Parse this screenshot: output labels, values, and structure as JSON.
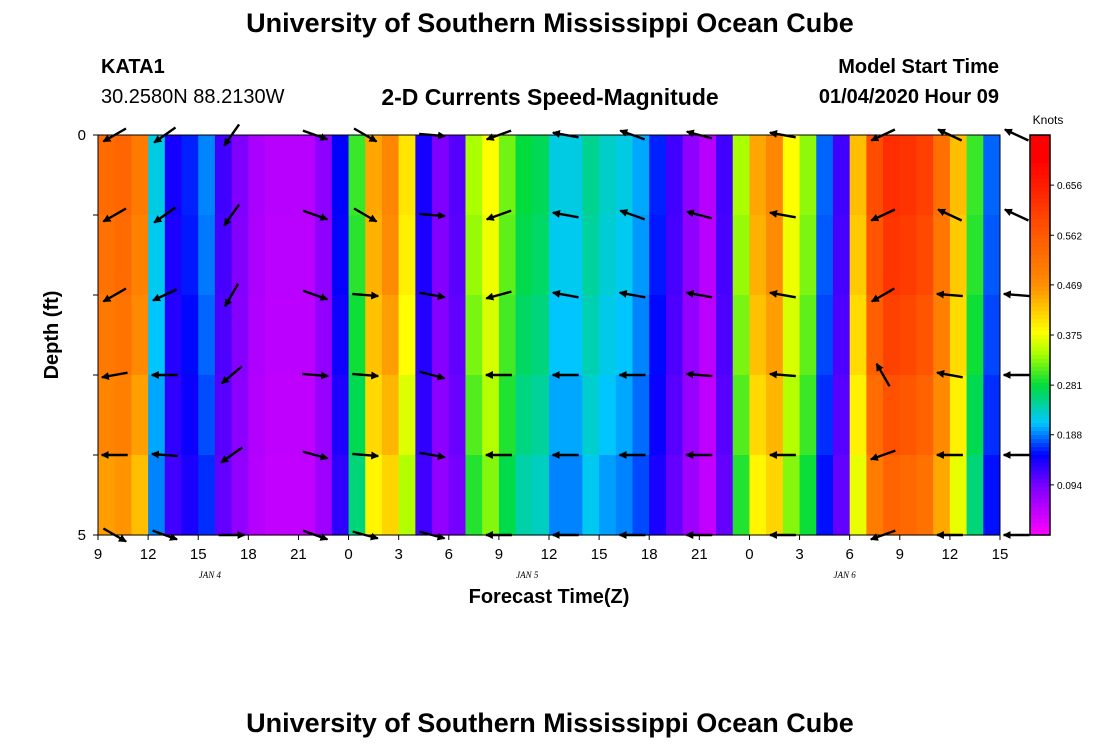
{
  "header": {
    "title": "University of Southern Mississippi Ocean Cube",
    "station_id": "KATA1",
    "station_coords": "30.2580N 88.2130W",
    "chart_title": "2-D Currents Speed-Magnitude",
    "model_start_label": "Model Start Time",
    "model_start_value": "01/04/2020 Hour 09"
  },
  "footer": {
    "title": "University of Southern Mississippi Ocean Cube"
  },
  "chart_data": {
    "type": "heatmap",
    "title": "2-D Currents Speed-Magnitude",
    "xlabel": "Forecast Time(Z)",
    "ylabel": "Depth (ft)",
    "x_tick_labels": [
      "9",
      "12",
      "15",
      "18",
      "21",
      "0",
      "3",
      "6",
      "9",
      "12",
      "15",
      "18",
      "21",
      "0",
      "3",
      "6",
      "9",
      "12",
      "15"
    ],
    "x_start_hour": 9,
    "x_hours_total": 54,
    "date_labels": [
      {
        "text": "JAN 4",
        "hour": 16
      },
      {
        "text": "JAN 5",
        "hour": 35
      },
      {
        "text": "JAN 6",
        "hour": 54
      }
    ],
    "y_range": [
      0,
      5
    ],
    "y_tick_labels": [
      "0",
      "",
      "",
      "",
      "",
      "5"
    ],
    "colorbar": {
      "unit": "Knots",
      "tick_values": [
        "0.656",
        "0.562",
        "0.469",
        "0.375",
        "0.281",
        "0.188",
        "0.094"
      ],
      "range": [
        0,
        0.75
      ]
    },
    "depth_levels": 5,
    "speed_by_hour": [
      0.53,
      0.54,
      0.5,
      0.22,
      0.14,
      0.16,
      0.19,
      0.12,
      0.09,
      0.06,
      0.05,
      0.05,
      0.05,
      0.08,
      0.15,
      0.3,
      0.45,
      0.48,
      0.4,
      0.14,
      0.09,
      0.11,
      0.34,
      0.38,
      0.32,
      0.28,
      0.27,
      0.22,
      0.22,
      0.25,
      0.23,
      0.22,
      0.2,
      0.16,
      0.12,
      0.08,
      0.05,
      0.12,
      0.34,
      0.45,
      0.48,
      0.38,
      0.33,
      0.18,
      0.12,
      0.43,
      0.58,
      0.63,
      0.62,
      0.6,
      0.52,
      0.43,
      0.3,
      0.18,
      0.27
    ],
    "speed_scale_by_depth": [
      1.0,
      0.98,
      0.95,
      0.91,
      0.86
    ],
    "vector_hours": [
      10,
      13,
      17,
      22,
      25,
      29,
      33,
      37,
      41,
      45,
      50,
      56,
      60,
      64
    ],
    "vector_row_depths": [
      0,
      1,
      2,
      3,
      4,
      5
    ],
    "vector_directions_deg": [
      [
        210,
        215,
        235,
        340,
        330,
        355,
        200,
        170,
        160,
        165,
        170,
        205,
        155,
        155
      ],
      [
        210,
        215,
        235,
        340,
        330,
        355,
        200,
        170,
        160,
        165,
        170,
        205,
        155,
        155
      ],
      [
        210,
        205,
        240,
        340,
        355,
        350,
        195,
        170,
        170,
        170,
        170,
        210,
        175,
        175
      ],
      [
        190,
        180,
        220,
        355,
        355,
        345,
        180,
        180,
        180,
        175,
        175,
        120,
        170,
        180
      ],
      [
        180,
        175,
        215,
        345,
        355,
        350,
        180,
        180,
        180,
        180,
        180,
        200,
        180,
        180
      ],
      [
        330,
        340,
        0,
        340,
        345,
        345,
        180,
        180,
        180,
        180,
        180,
        200,
        180,
        180
      ]
    ]
  }
}
